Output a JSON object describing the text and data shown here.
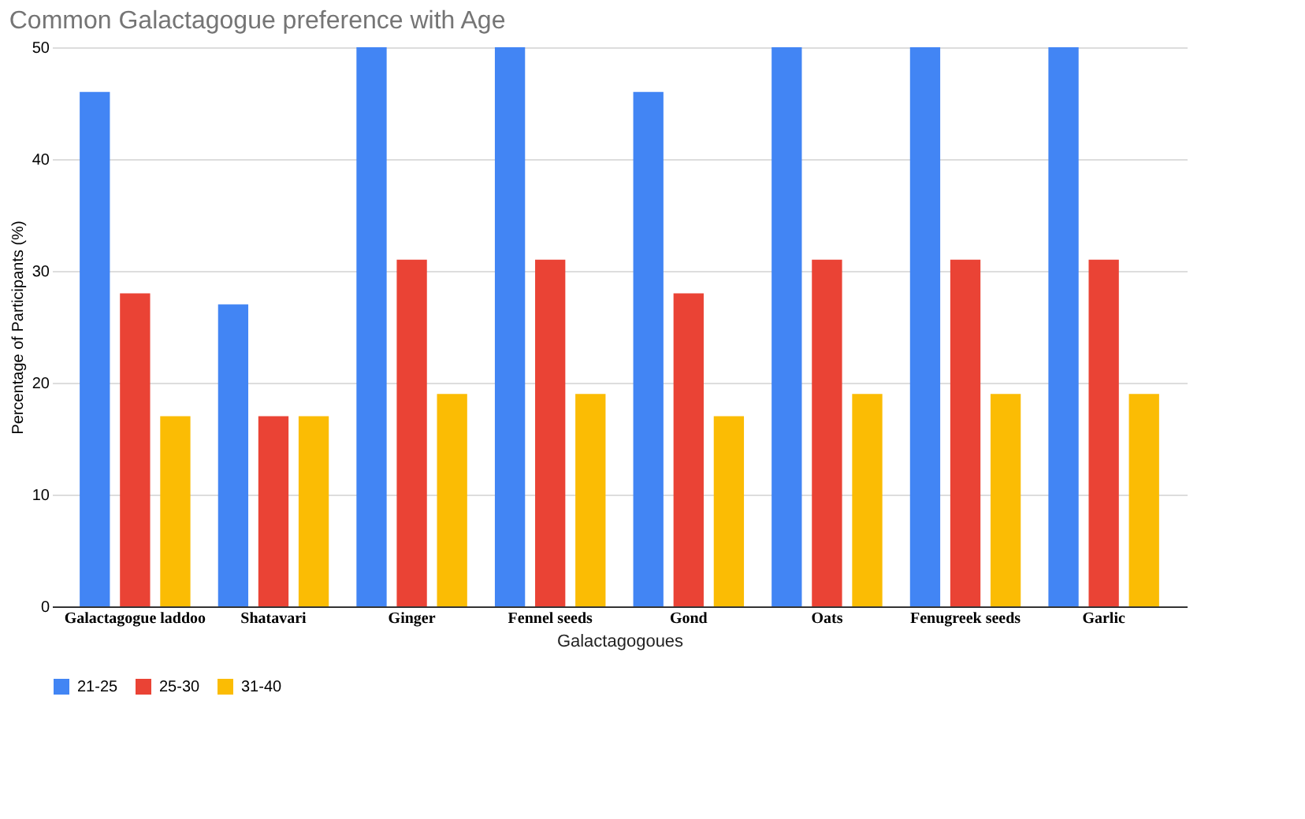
{
  "chart_data": {
    "type": "bar",
    "title": "Common Galactagogue preference with Age",
    "xlabel": "Galactagogoues",
    "ylabel": "Percentage of Participants (%)",
    "categories": [
      "Galactagogue laddoo",
      "Shatavari",
      "Ginger",
      "Fennel seeds",
      "Gond",
      "Oats",
      "Fenugreek seeds",
      "Garlic"
    ],
    "series": [
      {
        "name": "21-25",
        "color": "#4285f4",
        "values": [
          46,
          27,
          50,
          50,
          46,
          50,
          50,
          50
        ]
      },
      {
        "name": "25-30",
        "color": "#ea4335",
        "values": [
          28,
          17,
          31,
          31,
          28,
          31,
          31,
          31
        ]
      },
      {
        "name": "31-40",
        "color": "#fbbc04",
        "values": [
          17,
          17,
          19,
          19,
          17,
          19,
          19,
          19
        ]
      }
    ],
    "ylim": [
      0,
      50
    ],
    "yticks": [
      0,
      10,
      20,
      30,
      40,
      50
    ],
    "grid": "y",
    "legend": "bottom"
  }
}
